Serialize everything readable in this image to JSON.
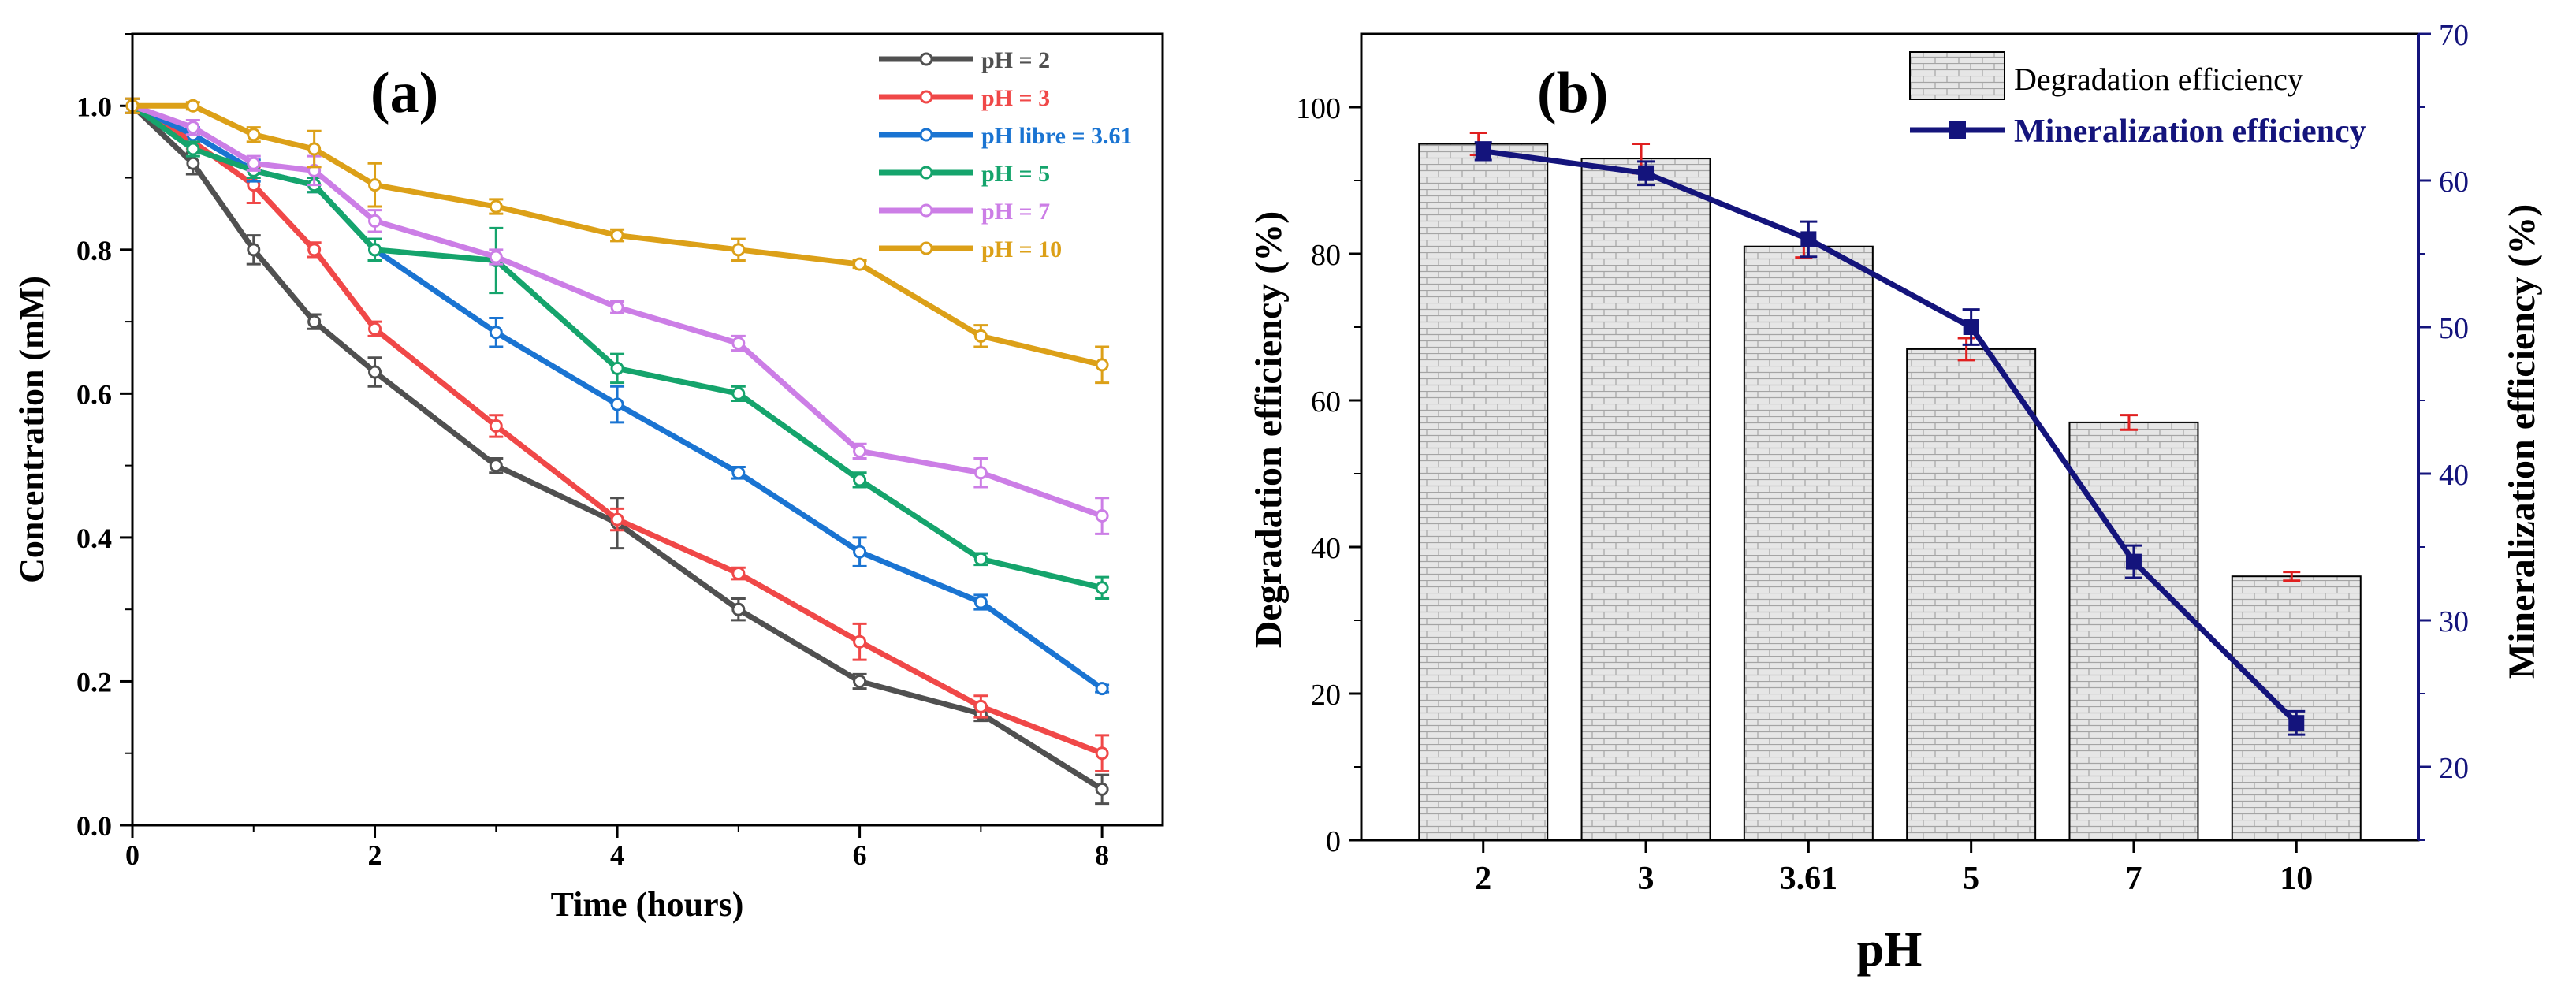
{
  "colors": {
    "ph2": "#505050",
    "ph3": "#f04848",
    "phlibre": "#1a74d2",
    "ph5": "#15a46c",
    "ph7": "#cc7ee6",
    "ph10": "#dca018",
    "mineral": "#14147c",
    "bar_fill": "#e4e4e4",
    "bar_line": "#a8a8a8",
    "deg_err": "#e02020",
    "axis": "#000000"
  },
  "chart_data": [
    {
      "type": "line",
      "title": "",
      "panel_label": "(a)",
      "xlabel": "Time (hours)",
      "ylabel": "Concentration (mM)",
      "xlim": [
        0,
        8.5
      ],
      "ylim": [
        0,
        1.1
      ],
      "xticks": [
        0,
        2,
        4,
        6,
        8
      ],
      "yticks": [
        0.0,
        0.2,
        0.4,
        0.6,
        0.8,
        1.0
      ],
      "ytick_labels": [
        "0.0",
        "0.2",
        "0.4",
        "0.6",
        "0.8",
        "1.0"
      ],
      "legend_position": "top-right",
      "x": [
        0,
        0.5,
        1,
        1.5,
        2,
        3,
        4,
        5,
        6,
        7,
        8
      ],
      "series": [
        {
          "name": "pH = 2",
          "color_key": "ph2",
          "values": [
            1.0,
            0.92,
            0.8,
            0.7,
            0.63,
            0.5,
            0.42,
            0.3,
            0.2,
            0.155,
            0.05
          ],
          "errors": [
            0.01,
            0.015,
            0.02,
            0.01,
            0.02,
            0.01,
            0.035,
            0.015,
            0.01,
            0.01,
            0.02
          ]
        },
        {
          "name": "pH = 3",
          "color_key": "ph3",
          "values": [
            1.0,
            0.95,
            0.89,
            0.8,
            0.69,
            0.555,
            0.425,
            0.35,
            0.255,
            0.165,
            0.1
          ],
          "errors": [
            0.01,
            0.01,
            0.025,
            0.01,
            0.01,
            0.015,
            0.015,
            0.008,
            0.025,
            0.015,
            0.025
          ]
        },
        {
          "name": "pH libre = 3.61",
          "color_key": "phlibre",
          "values": [
            1.0,
            0.96,
            0.91,
            0.89,
            0.8,
            0.685,
            0.585,
            0.49,
            0.38,
            0.31,
            0.19
          ],
          "errors": [
            0.01,
            0.01,
            0.015,
            0.01,
            0.015,
            0.02,
            0.025,
            0.008,
            0.02,
            0.01,
            0.005
          ]
        },
        {
          "name": "pH = 5",
          "color_key": "ph5",
          "values": [
            1.0,
            0.94,
            0.91,
            0.89,
            0.8,
            0.785,
            0.635,
            0.6,
            0.48,
            0.37,
            0.33
          ],
          "errors": [
            0.01,
            0.01,
            0.01,
            0.01,
            0.015,
            0.045,
            0.02,
            0.01,
            0.01,
            0.008,
            0.015
          ]
        },
        {
          "name": "pH = 7",
          "color_key": "ph7",
          "values": [
            1.0,
            0.97,
            0.92,
            0.91,
            0.84,
            0.79,
            0.72,
            0.67,
            0.52,
            0.49,
            0.43
          ],
          "errors": [
            0.01,
            0.01,
            0.01,
            0.02,
            0.015,
            0.01,
            0.008,
            0.01,
            0.01,
            0.02,
            0.025
          ]
        },
        {
          "name": "pH = 10",
          "color_key": "ph10",
          "values": [
            1.0,
            1.0,
            0.96,
            0.94,
            0.89,
            0.86,
            0.82,
            0.8,
            0.78,
            0.68,
            0.64
          ],
          "errors": [
            0.01,
            0.005,
            0.01,
            0.025,
            0.03,
            0.01,
            0.008,
            0.015,
            0.005,
            0.015,
            0.025
          ]
        }
      ]
    },
    {
      "type": "bar",
      "title": "",
      "panel_label": "(b)",
      "xlabel": "pH",
      "ylabel": "Degradation efficiency (%)",
      "y2label": "Mineralization efficiency (%)",
      "categories": [
        "2",
        "3",
        "3.61",
        "5",
        "7",
        "10"
      ],
      "ylim": [
        0,
        110
      ],
      "yticks": [
        0,
        20,
        40,
        60,
        80,
        100
      ],
      "y2lim": [
        15,
        70
      ],
      "y2ticks": [
        20,
        30,
        40,
        50,
        60,
        70
      ],
      "legend_position": "top-right",
      "series": [
        {
          "name": "Degradation efficiency",
          "axis": "left",
          "type": "bar",
          "values": [
            95,
            93,
            81,
            67,
            57,
            36
          ],
          "errors": [
            1.5,
            2.0,
            1.5,
            1.5,
            1.0,
            0.6
          ]
        },
        {
          "name": "Mineralization efficiency",
          "axis": "right",
          "type": "line",
          "values": [
            62,
            60.5,
            56,
            50,
            34,
            23
          ],
          "errors": [
            0.6,
            0.8,
            1.2,
            1.2,
            1.1,
            0.8
          ]
        }
      ]
    }
  ]
}
